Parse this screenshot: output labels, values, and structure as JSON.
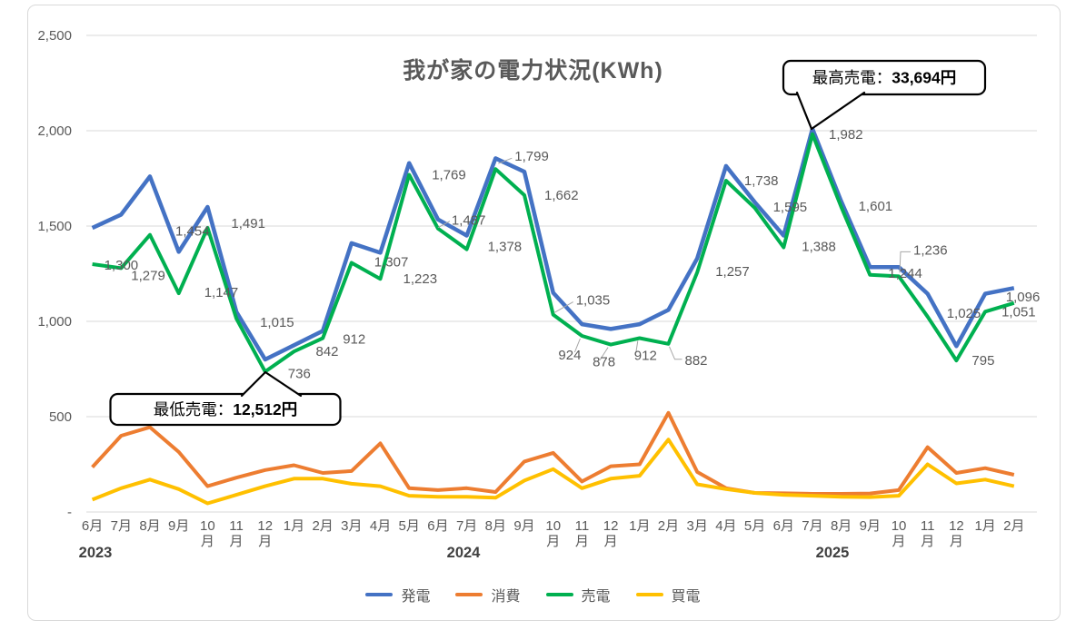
{
  "title": "我が家の電力状況(KWh)",
  "y_axis_labels": [
    "2,500",
    "2,000",
    "1,500",
    "1,000",
    "500",
    "-"
  ],
  "x_axis": {
    "month_labels": [
      "6月",
      "7月",
      "8月",
      "9月",
      "10月",
      "11月",
      "12月",
      "1月",
      "2月",
      "3月",
      "4月",
      "5月",
      "6月",
      "7月",
      "8月",
      "9月",
      "10月",
      "11月",
      "12月",
      "1月",
      "2月",
      "3月",
      "4月",
      "5月",
      "6月",
      "7月",
      "8月",
      "9月",
      "10月",
      "11月",
      "12月",
      "1月",
      "2月"
    ],
    "year_labels": [
      "2023",
      "2024",
      "2025"
    ]
  },
  "legend": [
    {
      "label": "発電",
      "color": "#4472C4"
    },
    {
      "label": "消費",
      "color": "#ED7D31"
    },
    {
      "label": "売電",
      "color": "#00B050"
    },
    {
      "label": "買電",
      "color": "#FFC000"
    }
  ],
  "callouts": {
    "max": {
      "prefix": "最高売電：",
      "amount": "33,694円"
    },
    "min": {
      "prefix": "最低売電：",
      "amount": "12,512円"
    }
  },
  "colors": {
    "grid": "#D9D9D9",
    "axis_text": "#595959",
    "year_text": "#404040",
    "data_label": "#595959",
    "leader_line": "#A6A6A6",
    "callout_border": "#000000"
  },
  "chart_data": {
    "type": "line",
    "title": "我が家の電力状況(KWh)",
    "categories": [
      "2023-06",
      "2023-07",
      "2023-08",
      "2023-09",
      "2023-10",
      "2023-11",
      "2023-12",
      "2024-01",
      "2024-02",
      "2024-03",
      "2024-04",
      "2024-05",
      "2024-06",
      "2024-07",
      "2024-08",
      "2024-09",
      "2024-10",
      "2024-11",
      "2024-12",
      "2025-01",
      "2025-02",
      "2025-03",
      "2025-04",
      "2025-05",
      "2025-06",
      "2025-07",
      "2025-08",
      "2025-09",
      "2025-10",
      "2025-11",
      "2025-12",
      "2026-01",
      "2026-02"
    ],
    "series": [
      {
        "name": "発電",
        "color": "#4472C4",
        "labeled": false,
        "values": [
          1490,
          1560,
          1760,
          1365,
          1600,
          1050,
          800,
          875,
          950,
          1410,
          1360,
          1830,
          1535,
          1450,
          1855,
          1785,
          1150,
          985,
          960,
          985,
          1060,
          1330,
          1815,
          1625,
          1450,
          2010,
          1630,
          1285,
          1285,
          1145,
          870,
          1145,
          1175
        ]
      },
      {
        "name": "消費",
        "color": "#ED7D31",
        "labeled": false,
        "values": [
          235,
          400,
          445,
          315,
          135,
          180,
          220,
          245,
          205,
          215,
          360,
          125,
          115,
          125,
          105,
          265,
          310,
          160,
          240,
          250,
          520,
          210,
          125,
          100,
          98,
          95,
          95,
          97,
          115,
          340,
          205,
          230,
          195
        ]
      },
      {
        "name": "売電",
        "color": "#00B050",
        "labeled": true,
        "values": [
          1300,
          1279,
          1454,
          1147,
          1491,
          1015,
          736,
          842,
          912,
          1307,
          1223,
          1769,
          1487,
          1378,
          1799,
          1662,
          1035,
          924,
          878,
          912,
          882,
          1257,
          1738,
          1595,
          1388,
          1982,
          1601,
          1244,
          1236,
          1025,
          795,
          1051,
          1096
        ]
      },
      {
        "name": "買電",
        "color": "#FFC000",
        "labeled": false,
        "values": [
          65,
          125,
          170,
          120,
          45,
          90,
          135,
          175,
          175,
          148,
          135,
          85,
          80,
          80,
          75,
          165,
          225,
          125,
          175,
          190,
          380,
          145,
          120,
          100,
          90,
          85,
          80,
          78,
          85,
          250,
          150,
          170,
          135
        ]
      }
    ],
    "ylim": [
      0,
      2500
    ],
    "y_ticks": [
      0,
      500,
      1000,
      1500,
      2000,
      2500
    ],
    "grid": "horizontal-only",
    "legend_position": "bottom",
    "annotations": [
      {
        "text": "最高売電：33,694円",
        "target_category": "2025-07",
        "target_series": "売電",
        "target_value": 1982
      },
      {
        "text": "最低売電：12,512円",
        "target_category": "2023-12",
        "target_series": "売電",
        "target_value": 736
      }
    ]
  }
}
